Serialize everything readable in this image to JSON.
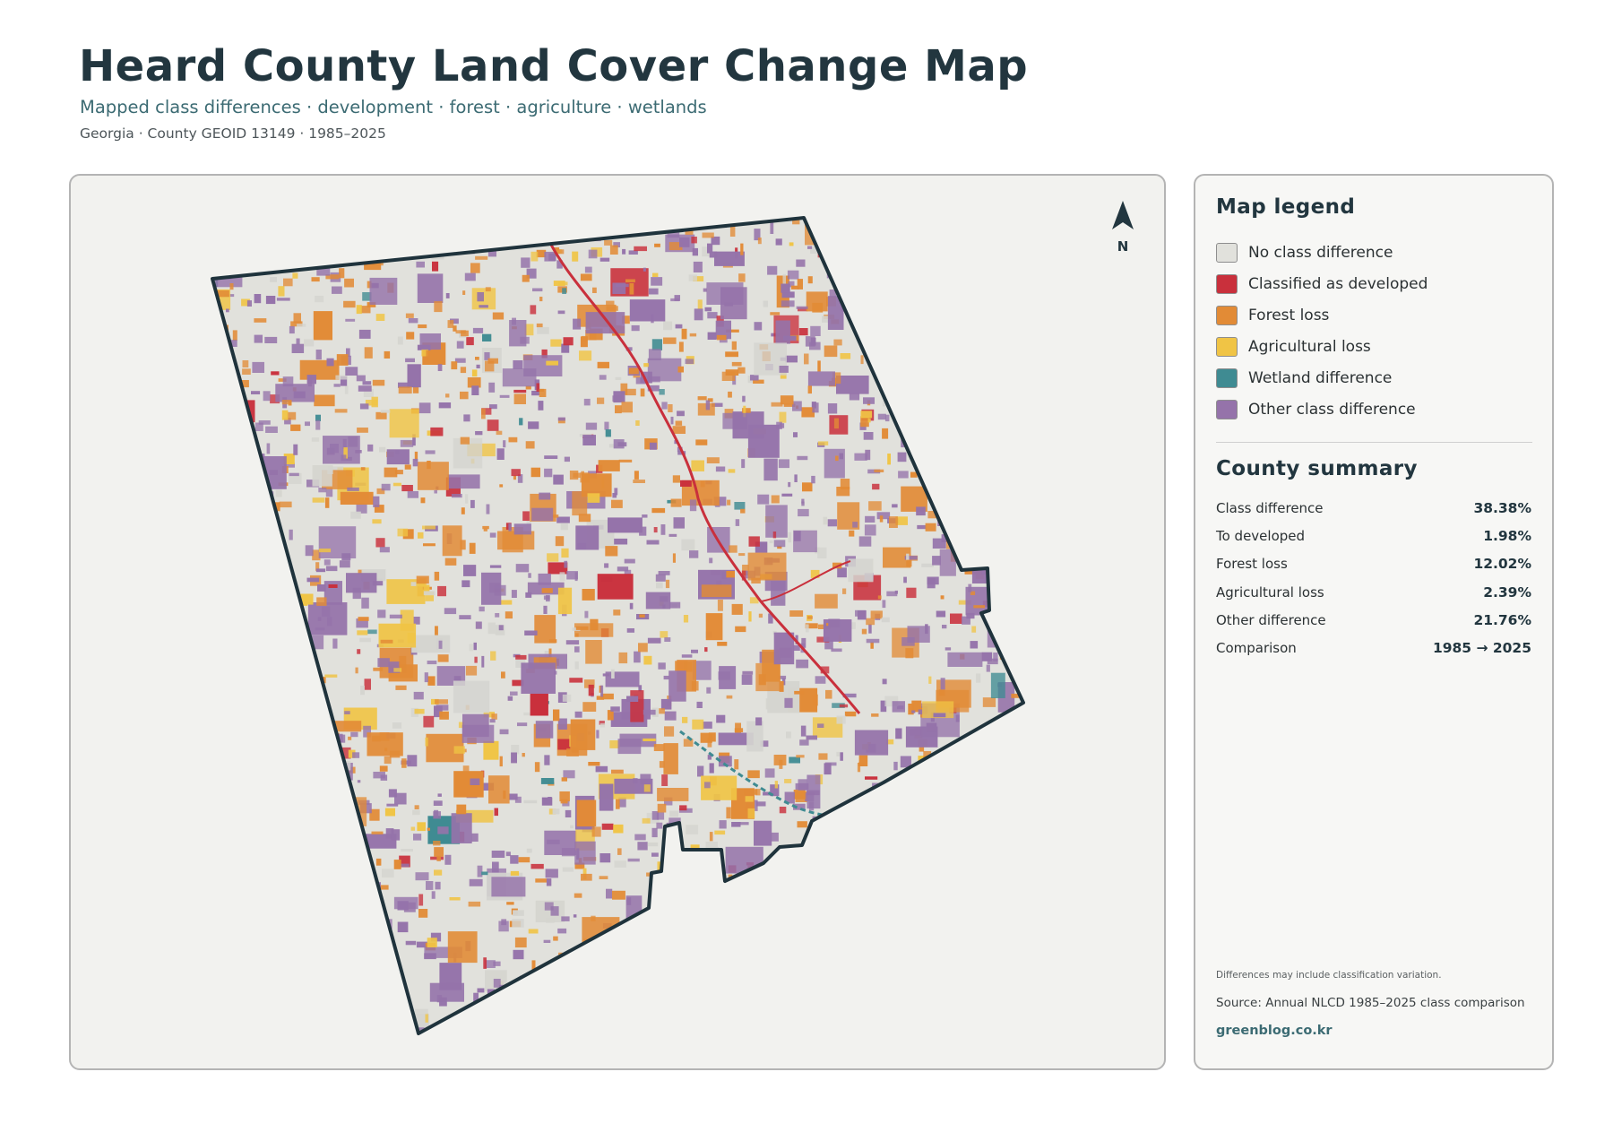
{
  "header": {
    "title": "Heard County Land Cover Change Map",
    "subtitle": "Mapped class differences · development · forest · agriculture · wetlands",
    "meta": "Georgia · County GEOID 13149 · 1985–2025"
  },
  "map": {
    "north_label": "N",
    "colors": {
      "background": "#f2f2ef",
      "boundary": "#1f333c",
      "no_change": "#e1e1dc"
    }
  },
  "legend": {
    "title": "Map legend",
    "items": [
      {
        "label": "No class difference",
        "color": "#e1e1dc"
      },
      {
        "label": "Classified as developed",
        "color": "#c9303c"
      },
      {
        "label": "Forest loss",
        "color": "#e28b36"
      },
      {
        "label": "Agricultural loss",
        "color": "#f0c445"
      },
      {
        "label": "Wetland difference",
        "color": "#3f8b92"
      },
      {
        "label": "Other class difference",
        "color": "#9573aa"
      }
    ]
  },
  "summary": {
    "title": "County summary",
    "rows": [
      {
        "label": "Class difference",
        "value": "38.38%"
      },
      {
        "label": "To developed",
        "value": "1.98%"
      },
      {
        "label": "Forest loss",
        "value": "12.02%"
      },
      {
        "label": "Agricultural loss",
        "value": "2.39%"
      },
      {
        "label": "Other difference",
        "value": "21.76%"
      },
      {
        "label": "Comparison",
        "value": "1985 → 2025"
      }
    ]
  },
  "footer": {
    "note": "Differences may include classification variation.",
    "source": "Source: Annual NLCD 1985–2025 class comparison",
    "site": "greenblog.co.kr"
  }
}
